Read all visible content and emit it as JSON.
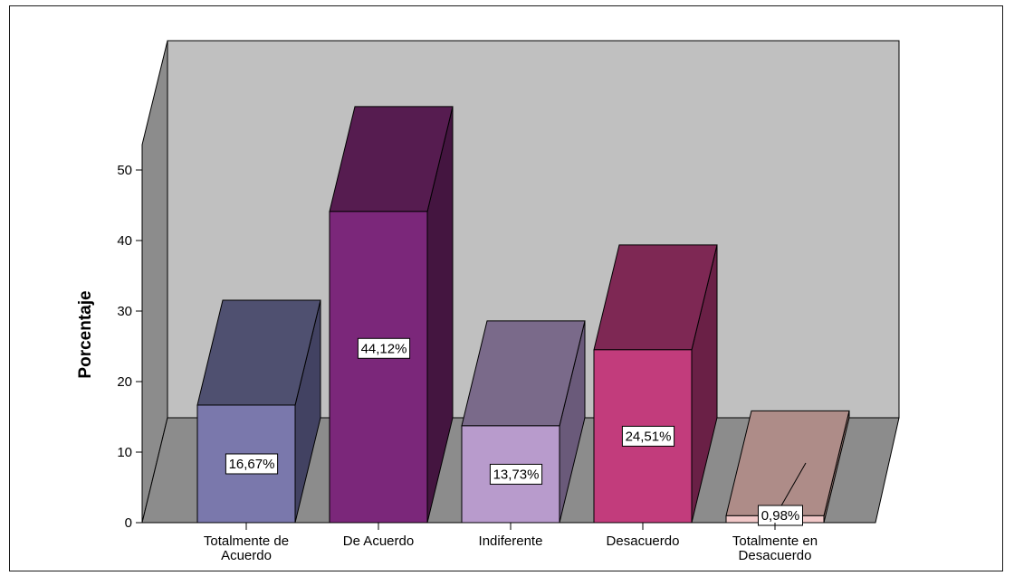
{
  "chart_data": {
    "type": "bar",
    "style": "3d",
    "ylabel": "Porcentaje",
    "xlabel": "",
    "ylim": [
      0,
      50
    ],
    "yticks": [
      "0",
      "10",
      "20",
      "30",
      "40",
      "50"
    ],
    "categories": [
      [
        "Totalmente de",
        "Acuerdo"
      ],
      [
        "De Acuerdo"
      ],
      [
        "Indiferente"
      ],
      [
        "Desacuerdo"
      ],
      [
        "Totalmente en",
        "Desacuerdo"
      ]
    ],
    "values": [
      16.67,
      44.12,
      13.73,
      24.51,
      0.98
    ],
    "data_labels": [
      "16,67%",
      "44,12%",
      "13,73%",
      "24,51%",
      "0,98%"
    ],
    "colors": [
      {
        "front": "#7a78ac",
        "top": "#4f5070",
        "side": "#424262"
      },
      {
        "front": "#7b277a",
        "top": "#561c50",
        "side": "#441540"
      },
      {
        "front": "#b89bcc",
        "top": "#7a6a8a",
        "side": "#6a5a7a"
      },
      {
        "front": "#c23c7c",
        "top": "#7e2854",
        "side": "#6a2046"
      },
      {
        "front": "#f0c8c8",
        "top": "#ae8c88",
        "side": "#94746e"
      }
    ],
    "grid": false,
    "legend": "none"
  }
}
